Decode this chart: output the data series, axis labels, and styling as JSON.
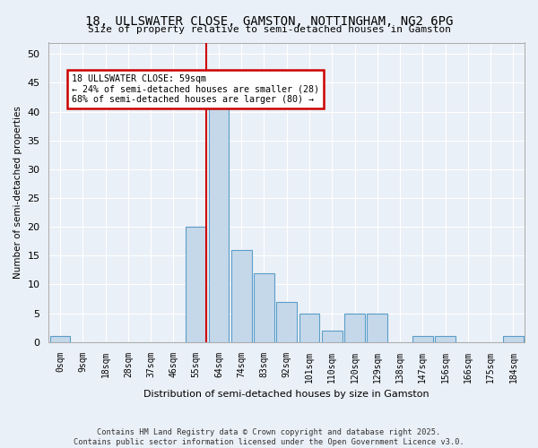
{
  "title_line1": "18, ULLSWATER CLOSE, GAMSTON, NOTTINGHAM, NG2 6PG",
  "title_line2": "Size of property relative to semi-detached houses in Gamston",
  "xlabel": "Distribution of semi-detached houses by size in Gamston",
  "ylabel": "Number of semi-detached properties",
  "bin_labels": [
    "0sqm",
    "9sqm",
    "18sqm",
    "28sqm",
    "37sqm",
    "46sqm",
    "55sqm",
    "64sqm",
    "74sqm",
    "83sqm",
    "92sqm",
    "101sqm",
    "110sqm",
    "120sqm",
    "129sqm",
    "138sqm",
    "147sqm",
    "156sqm",
    "166sqm",
    "175sqm",
    "184sqm"
  ],
  "bar_values": [
    1,
    0,
    0,
    0,
    0,
    0,
    20,
    42,
    16,
    12,
    7,
    5,
    2,
    5,
    5,
    0,
    1,
    1,
    0,
    0,
    1
  ],
  "bar_color": "#c5d8ea",
  "bar_edge_color": "#5a9ec9",
  "property_bin_index": 6,
  "annotation_title": "18 ULLSWATER CLOSE: 59sqm",
  "annotation_line2": "← 24% of semi-detached houses are smaller (28)",
  "annotation_line3": "68% of semi-detached houses are larger (80) →",
  "annotation_box_color": "#ffffff",
  "annotation_box_edge_color": "#cc0000",
  "vline_color": "#cc0000",
  "ylim": [
    0,
    52
  ],
  "yticks": [
    0,
    5,
    10,
    15,
    20,
    25,
    30,
    35,
    40,
    45,
    50
  ],
  "background_color": "#eaf0f7",
  "grid_color": "#ffffff",
  "footer_line1": "Contains HM Land Registry data © Crown copyright and database right 2025.",
  "footer_line2": "Contains public sector information licensed under the Open Government Licence v3.0."
}
